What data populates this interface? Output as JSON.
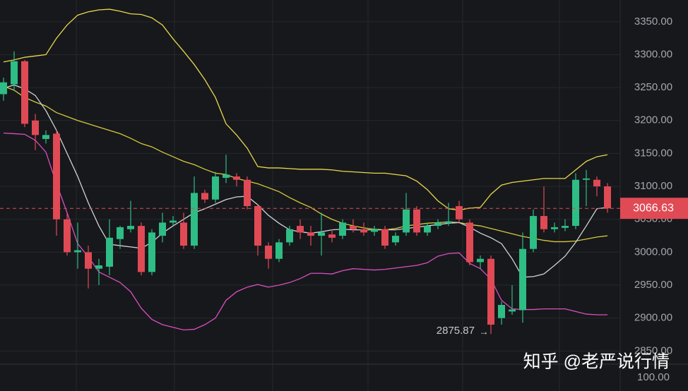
{
  "chart_data": {
    "type": "candlestick",
    "ylim": [
      2830,
      3383
    ],
    "yticks": [
      {
        "value": 2850,
        "label": "2850.00"
      },
      {
        "value": 2900,
        "label": "2900.00"
      },
      {
        "value": 2950,
        "label": "2950.00"
      },
      {
        "value": 3000,
        "label": "3000.00"
      },
      {
        "value": 3050,
        "label": "3050.00"
      },
      {
        "value": 3100,
        "label": "3100.00"
      },
      {
        "value": 3150,
        "label": "3150.00"
      },
      {
        "value": 3200,
        "label": "3200.00"
      },
      {
        "value": 3250,
        "label": "3250.00"
      },
      {
        "value": 3300,
        "label": "3300.00"
      },
      {
        "value": 3350,
        "label": "3350.00"
      }
    ],
    "grid": true,
    "up_color": "#2ebd85",
    "down_color": "#e04a55",
    "candles": {
      "open": [
        3240,
        3255,
        3290,
        3200,
        3172,
        3180,
        3050,
        3000,
        3000,
        2975,
        2978,
        3020,
        3035,
        3040,
        2970,
        3025,
        3045,
        3045,
        3010,
        3090,
        3080,
        3113,
        3115,
        3110,
        3070,
        3010,
        2990,
        3015,
        3040,
        3030,
        3025,
        3027,
        3025,
        3040,
        3035,
        3031,
        3035,
        3015,
        3030,
        3065,
        3030,
        3040,
        3044,
        3070,
        3045,
        2985,
        2990,
        2900,
        2910,
        2912,
        3005,
        3055,
        3035,
        3037,
        3040,
        3110,
        3110,
        3100
      ],
      "high": [
        3265,
        3305,
        3292,
        3210,
        3185,
        3185,
        3060,
        3045,
        3010,
        2990,
        3050,
        3040,
        3078,
        3045,
        3035,
        3060,
        3055,
        3060,
        3115,
        3095,
        3122,
        3148,
        3120,
        3115,
        3072,
        3015,
        3020,
        3040,
        3050,
        3040,
        3060,
        3035,
        3050,
        3050,
        3045,
        3040,
        3040,
        3030,
        3090,
        3070,
        3045,
        3050,
        3075,
        3078,
        3050,
        2995,
        2995,
        2925,
        2950,
        3030,
        3065,
        3100,
        3045,
        3050,
        3120,
        3125,
        3115,
        3105
      ],
      "low": [
        3230,
        3245,
        3190,
        3155,
        3165,
        3025,
        2995,
        2975,
        2945,
        2950,
        2965,
        3005,
        3030,
        2965,
        2965,
        3015,
        3040,
        3005,
        3005,
        3075,
        3075,
        3105,
        3100,
        3065,
        2995,
        2975,
        2985,
        3010,
        3020,
        3010,
        2995,
        3015,
        3020,
        3030,
        3025,
        3025,
        3005,
        3010,
        3025,
        3025,
        3025,
        3035,
        3040,
        3045,
        2980,
        2975,
        2875.87,
        2890,
        2905,
        2893,
        3000,
        3030,
        3030,
        3032,
        3035,
        3070,
        3085,
        3060
      ],
      "close": [
        3258,
        3290,
        3195,
        3178,
        3178,
        3050,
        3000,
        3003,
        2975,
        2980,
        3022,
        3038,
        3040,
        2970,
        3030,
        3045,
        3048,
        3010,
        3090,
        3080,
        3115,
        3118,
        3110,
        3070,
        3010,
        2990,
        3015,
        3035,
        3030,
        3025,
        3030,
        3022,
        3045,
        3035,
        3030,
        3035,
        3010,
        3025,
        3065,
        3030,
        3040,
        3045,
        3047,
        3050,
        2985,
        2990,
        2890,
        2920,
        2913,
        3005,
        3055,
        3035,
        3038,
        3040,
        3110,
        3112,
        3100,
        3066.63
      ]
    },
    "series": [
      {
        "color": "#e8d84a",
        "values": [
          3289,
          3292,
          3296,
          3298,
          3300,
          3325,
          3345,
          3360,
          3365,
          3368,
          3369,
          3366,
          3362,
          3361,
          3356,
          3345,
          3324,
          3305,
          3285,
          3262,
          3235,
          3195,
          3178,
          3158,
          3130,
          3128,
          3128,
          3127,
          3126,
          3126,
          3126,
          3125,
          3123,
          3122,
          3121,
          3120,
          3120,
          3118,
          3116,
          3108,
          3095,
          3078,
          3066,
          3064,
          3067,
          3068,
          3088,
          3102,
          3106,
          3108,
          3110,
          3112,
          3112,
          3112,
          3125,
          3138,
          3145,
          3148
        ]
      },
      {
        "color": "#d94fc0",
        "values": [
          3181,
          3180,
          3179,
          3170,
          3152,
          3104,
          3060,
          3013,
          2993,
          2970,
          2962,
          2954,
          2940,
          2915,
          2898,
          2890,
          2886,
          2882,
          2883,
          2890,
          2900,
          2927,
          2940,
          2947,
          2951,
          2947,
          2950,
          2954,
          2960,
          2968,
          2968,
          2967,
          2972,
          2975,
          2974,
          2973,
          2974,
          2976,
          2978,
          2980,
          2984,
          2994,
          2998,
          2999,
          2983,
          2975,
          2959,
          2927,
          2914,
          2913,
          2913,
          2914,
          2914,
          2914,
          2910,
          2906,
          2905,
          2905
        ]
      },
      {
        "color": "#d6c83c",
        "values": [
          3252,
          3246,
          3235,
          3228,
          3222,
          3212,
          3206,
          3200,
          3195,
          3190,
          3185,
          3180,
          3173,
          3165,
          3160,
          3152,
          3145,
          3138,
          3133,
          3126,
          3120,
          3118,
          3112,
          3108,
          3104,
          3098,
          3092,
          3083,
          3075,
          3068,
          3058,
          3050,
          3044,
          3040,
          3037,
          3035,
          3034,
          3036,
          3040,
          3042,
          3044,
          3045,
          3046,
          3045,
          3042,
          3040,
          3036,
          3032,
          3028,
          3024,
          3021,
          3018,
          3016,
          3016,
          3017,
          3020,
          3023,
          3025
        ]
      },
      {
        "color": "#cfd2d6",
        "values": [
          3249,
          3254,
          3248,
          3238,
          3215,
          3185,
          3150,
          3115,
          3075,
          3040,
          3012,
          3010,
          3008,
          3006,
          3015,
          3029,
          3040,
          3050,
          3060,
          3066,
          3073,
          3080,
          3084,
          3085,
          3072,
          3056,
          3044,
          3034,
          3031,
          3029,
          3031,
          3034,
          3035,
          3034,
          3034,
          3034,
          3034,
          3034,
          3036,
          3038,
          3040,
          3042,
          3044,
          3045,
          3038,
          3029,
          3022,
          3013,
          2990,
          2962,
          2963,
          2967,
          2980,
          2994,
          3015,
          3040,
          3066,
          3068
        ]
      }
    ],
    "last_price_label": "3066.63",
    "low_label": "2875.87",
    "volume_axis_label": "100.00",
    "watermark": "知乎 @老严说行情"
  }
}
